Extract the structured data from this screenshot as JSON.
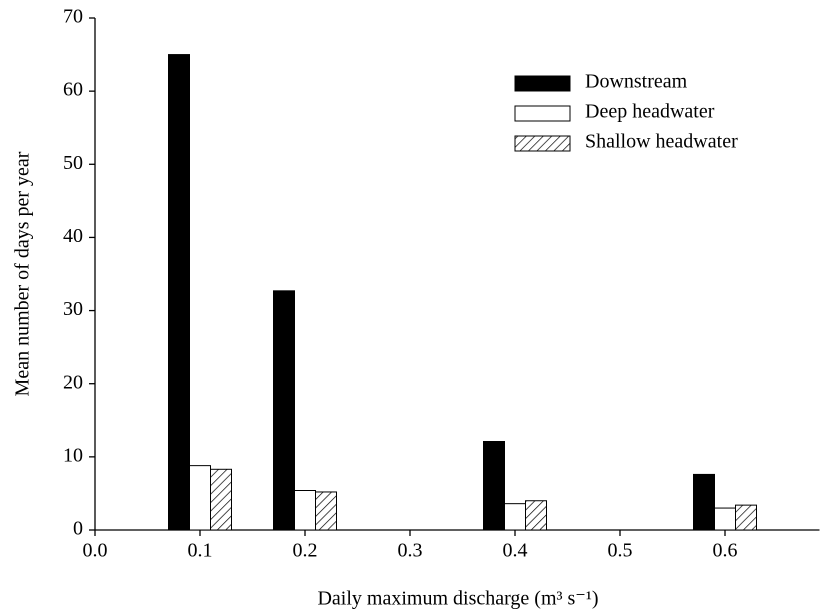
{
  "chart_data": {
    "type": "bar",
    "x_label": "Daily maximum discharge (m³ s⁻¹)",
    "y_label": "Mean number of days per year",
    "x": [
      0.1,
      0.2,
      0.4,
      0.6
    ],
    "series": [
      {
        "name": "Downstream",
        "color": "#000000",
        "values": [
          65,
          32.7,
          12.1,
          7.6
        ]
      },
      {
        "name": "Deep headwater",
        "color": "#ffffff",
        "values": [
          8.8,
          5.4,
          3.6,
          3.0
        ]
      },
      {
        "name": "Shallow headwater",
        "color": "#ffffff",
        "pattern": "hatch",
        "values": [
          8.3,
          5.2,
          4.0,
          3.4
        ]
      }
    ],
    "xlim": [
      0,
      0.69
    ],
    "xticks": [
      {
        "value": 0,
        "label": "0.0"
      },
      0.1,
      0.2,
      0.3,
      0.4,
      0.5,
      0.6
    ],
    "ylim": [
      0,
      70
    ],
    "yticks": [
      0,
      10,
      20,
      30,
      40,
      50,
      60,
      70
    ],
    "legend": "upper right"
  }
}
